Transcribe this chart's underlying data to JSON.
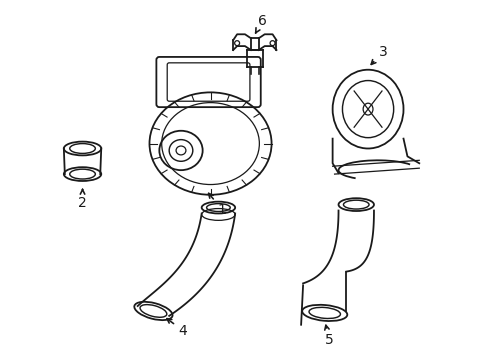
{
  "background_color": "#ffffff",
  "line_color": "#1a1a1a",
  "line_width": 1.3,
  "label_fontsize": 10,
  "fig_width": 4.89,
  "fig_height": 3.6,
  "dpi": 100
}
